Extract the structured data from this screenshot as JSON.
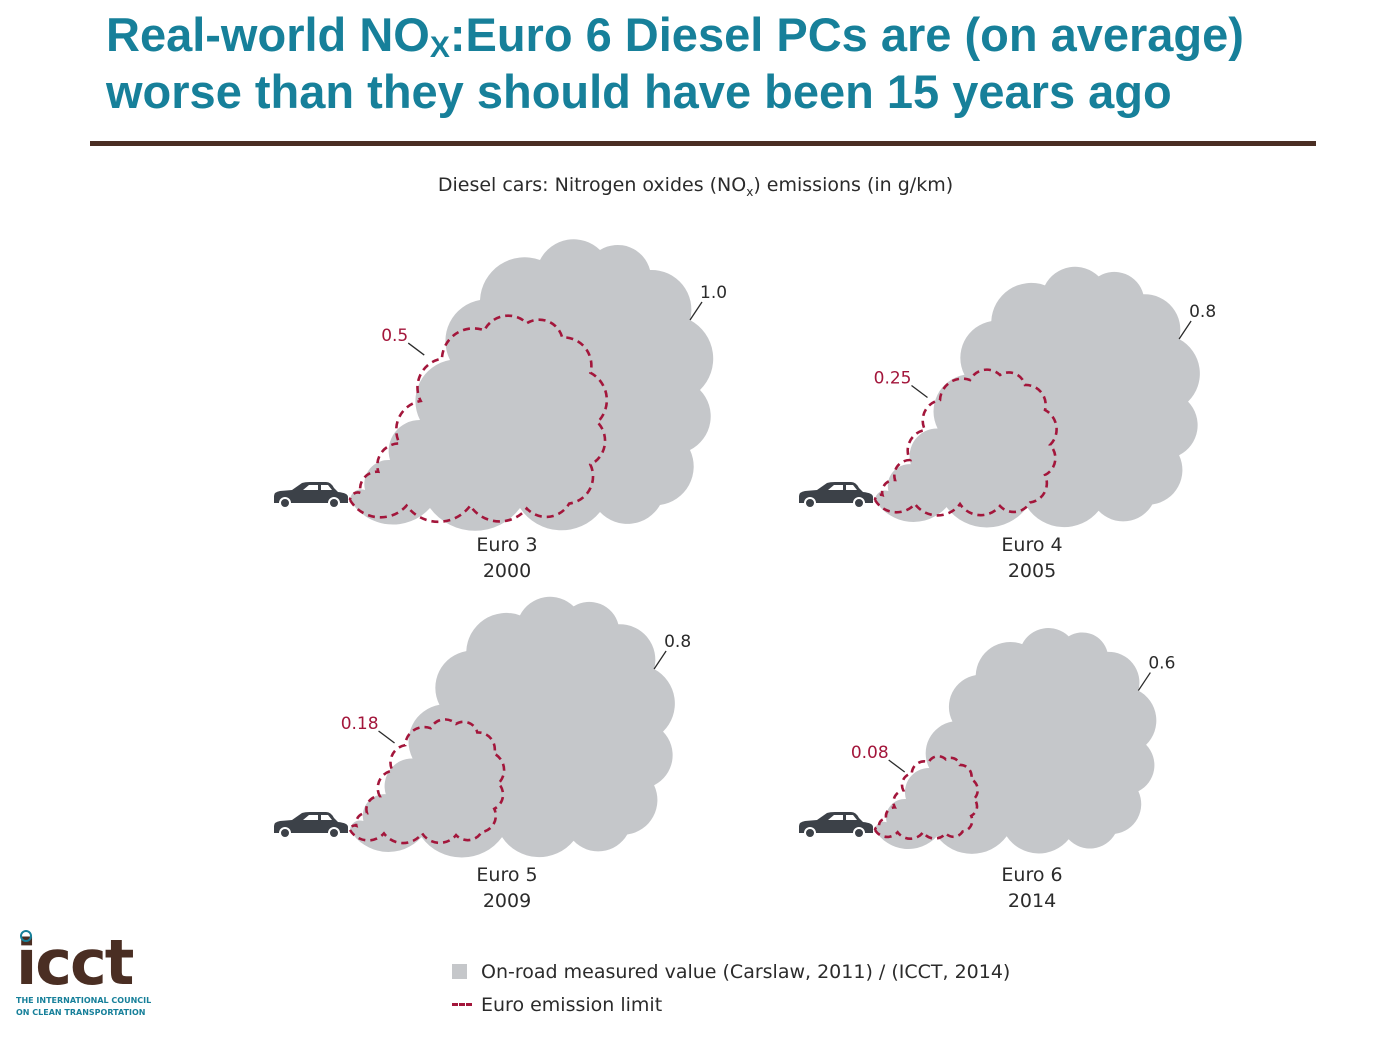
{
  "title": {
    "line1_a": "Real-world NO",
    "line1_sub": "X",
    "line1_b": ":Euro 6 Diesel PCs are (on average)",
    "line2": "worse than they should have been 15 years ago"
  },
  "subtitle": {
    "a": "Diesel cars: Nitrogen oxides (NO",
    "sub": "x",
    "b": ") emissions (in g/km)"
  },
  "chart_data": {
    "type": "area",
    "title": "Diesel cars: Nitrogen oxides (NOx) emissions (in g/km)",
    "categories": [
      "Euro 3",
      "Euro 4",
      "Euro 5",
      "Euro 6"
    ],
    "years": [
      "2000",
      "2005",
      "2009",
      "2014"
    ],
    "series": [
      {
        "name": "On-road measured value (Carslaw, 2011) / (ICCT, 2014)",
        "values": [
          1.0,
          0.8,
          0.8,
          0.6
        ],
        "labels": [
          "1.0",
          "0.8",
          "0.8",
          "0.6"
        ],
        "color": "#c5c7ca"
      },
      {
        "name": "Euro emission limit",
        "values": [
          0.5,
          0.25,
          0.18,
          0.08
        ],
        "labels": [
          "0.5",
          "0.25",
          "0.18",
          "0.08"
        ],
        "color": "#a3163b"
      }
    ]
  },
  "legend": {
    "measured": "On-road measured value (Carslaw, 2011) / (ICCT, 2014)",
    "limit": "Euro emission limit"
  },
  "logo": {
    "word": "icct",
    "tagline1": "THE INTERNATIONAL COUNCIL",
    "tagline2": "ON CLEAN TRANSPORTATION"
  },
  "colors": {
    "title": "#17809a",
    "measured": "#c5c7ca",
    "limit": "#a3163b",
    "car": "#3c4148"
  }
}
